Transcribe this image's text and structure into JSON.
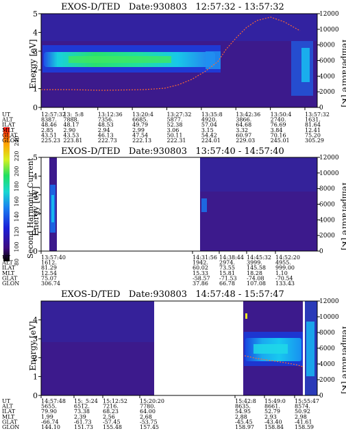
{
  "colorbar": {
    "label": "Second Harmonic Current",
    "ticks": [
      "80",
      "100",
      "120",
      "140",
      "160",
      "180",
      "200",
      "220",
      "240"
    ]
  },
  "chart_data": [
    {
      "type": "heatmap",
      "title": "EXOS-D/TED   Date:930803   12:57:32 - 13:57:32",
      "ylabel": "Energy [eV]",
      "y2label": "Temperature [K]",
      "ylim": [
        0,
        5
      ],
      "y2lim": [
        0,
        12000
      ],
      "yticks": [
        "0",
        "1",
        "2",
        "3",
        "4",
        "5"
      ],
      "y2ticks": [
        "0",
        "2000",
        "4000",
        "6000",
        "8000",
        "10000",
        "12000"
      ],
      "orbit_rows": [
        "UT",
        "ALT",
        "ILAT",
        "MLT",
        "GLAT",
        "GLON"
      ],
      "orbit_table": [
        [
          "12:57:32",
          "8387.",
          "48.46",
          "2.85",
          "43.51",
          "225.23"
        ],
        [
          "13:_5:8",
          "7888.",
          "48.17",
          "2.90",
          "43.53",
          "223.81"
        ],
        [
          "13:12:36",
          "7356.",
          "48.53",
          "2.94",
          "46.13",
          "222.73"
        ],
        [
          "13:20:4",
          "6685.",
          "49.79",
          "2.99",
          "47.54",
          "222.13"
        ],
        [
          "13:27:32",
          "5877.",
          "52.38",
          "3.06",
          "50.11",
          "222.31"
        ],
        [
          "13:35:8",
          "4920.",
          "57.04",
          "3.15",
          "54.42",
          "224.01"
        ],
        [
          "13:42:36",
          "3866.",
          "64.68",
          "3.32",
          "60.97",
          "229.03"
        ],
        [
          "13:50:4",
          "2740.",
          "76.69",
          "3.84",
          "70.16",
          "245.01"
        ],
        [
          "13:57:32",
          "1631.",
          "81.64",
          "12.41",
          "75.20",
          "305.29"
        ]
      ]
    },
    {
      "type": "heatmap",
      "title": "EXOS-D/TED   Date:930803   13:57:40 - 14:57:40",
      "ylabel": "Energy [eV]",
      "y2label": "Temperature [K]",
      "ylim": [
        0,
        5
      ],
      "y2lim": [
        0,
        12000
      ],
      "yticks": [
        "0",
        "1",
        "2",
        "3",
        "4",
        "5"
      ],
      "y2ticks": [
        "0",
        "2000",
        "4000",
        "6000",
        "8000",
        "10000",
        "12000"
      ],
      "orbit_rows": [
        "UT",
        "ALT",
        "ILAT",
        "MLT",
        "GLAT",
        "GLON"
      ],
      "orbit_table": [
        [
          "13:57:40",
          "1612.",
          "81.29",
          "12.54",
          "75.07",
          "306.74"
        ],
        [
          "14:31:56",
          "1942.",
          "60.02",
          "15.33",
          "-58.57",
          "37.86"
        ],
        [
          "14:38:44",
          "2974.",
          "73.55",
          "15.81",
          "-71.53",
          "66.78"
        ],
        [
          "14:45:32",
          "3999.",
          "145.58",
          "18.28",
          "-74.08",
          "107.08"
        ],
        [
          "14:52:20",
          "4955.",
          "999.00",
          "1.10",
          "-70.54",
          "133.43"
        ]
      ]
    },
    {
      "type": "heatmap",
      "title": "EXOS-D/TED   Date:930803   14:57:48 - 15:57:47",
      "ylabel": "Energy [eV]",
      "y2label": "Temperature [K]",
      "ylim": [
        0,
        5
      ],
      "y2lim": [
        0,
        12000
      ],
      "yticks": [
        "0",
        "1",
        "2",
        "3",
        "4"
      ],
      "y2ticks": [
        "0",
        "2000",
        "4000",
        "6000",
        "8000",
        "10000",
        "12000"
      ],
      "orbit_rows": [
        "UT",
        "ALT",
        "ILAT",
        "MLT",
        "GLAT",
        "GLON"
      ],
      "orbit_table": [
        [
          "14:57:48",
          "5655.",
          "79.90",
          "1.99",
          "-66.74",
          "144.10"
        ],
        [
          "15:_5:24",
          "6512.",
          "73.38",
          "2.39",
          "-61.73",
          "151.73"
        ],
        [
          "15:12:52",
          "7216.",
          "68.23",
          "2.56",
          "-57.45",
          "155.48"
        ],
        [
          "15:20:20",
          "7780.",
          "64.00",
          "2.68",
          "-53.75",
          "157.45"
        ],
        [
          "15:42:8",
          "8635.",
          "54.95",
          "2.88",
          "-45.45",
          "158.97"
        ],
        [
          "15:49:0",
          "8661.",
          "52.79",
          "2.93",
          "-43.40",
          "158.84"
        ],
        [
          "15:55:47",
          "8574.",
          "50.92",
          "2.98",
          "-41.61",
          "158.59"
        ]
      ]
    }
  ]
}
